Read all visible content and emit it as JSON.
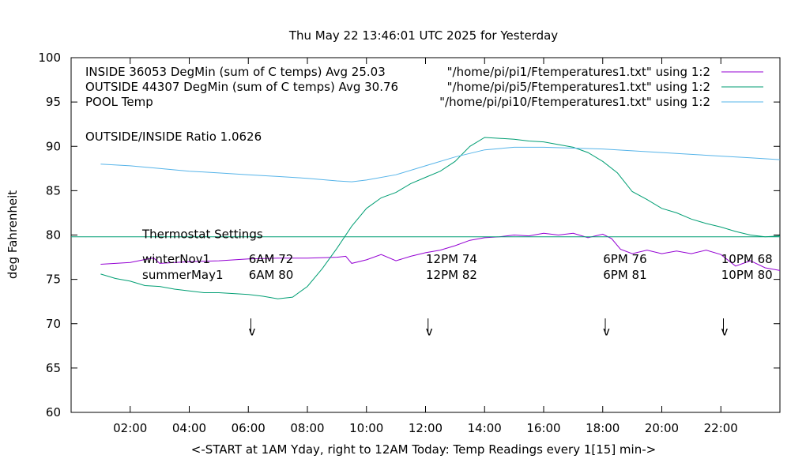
{
  "chart_data": {
    "type": "line",
    "title": "Thu May 22 13:46:01 UTC 2025 for Yesterday",
    "xlabel": "<-START at 1AM Yday, right to 12AM Today:  Temp Readings every 1[15] min->",
    "ylabel": "deg Fahrenheit",
    "xlim": [
      0,
      24
    ],
    "ylim": [
      60,
      100
    ],
    "x_ticks": [
      2,
      4,
      6,
      8,
      10,
      12,
      14,
      16,
      18,
      20,
      22
    ],
    "x_tick_labels": [
      "02:00",
      "04:00",
      "06:00",
      "08:00",
      "10:00",
      "12:00",
      "14:00",
      "16:00",
      "18:00",
      "20:00",
      "22:00"
    ],
    "y_ticks": [
      60,
      65,
      70,
      75,
      80,
      85,
      90,
      95,
      100
    ],
    "y_tick_labels": [
      "60",
      "65",
      "70",
      "75",
      "80",
      "85",
      "90",
      "95",
      "100"
    ],
    "grid": false,
    "legend_position": "top",
    "series": [
      {
        "name": "INSIDE 36053 DegMin (sum of C temps) Avg 25.03",
        "legend_key": "\"/home/pi/pi1/Ftemperatures1.txt\" using 1:2",
        "color": "#9400d3",
        "x": [
          1.0,
          2.0,
          2.6,
          2.8,
          3.0,
          4.0,
          5.0,
          6.0,
          7.0,
          8.0,
          9.0,
          9.3,
          9.5,
          10.0,
          10.5,
          11.0,
          11.5,
          12.0,
          12.5,
          13.0,
          13.5,
          14.0,
          14.5,
          15.0,
          15.5,
          16.0,
          16.5,
          17.0,
          17.5,
          18.0,
          18.3,
          18.6,
          19.0,
          19.5,
          20.0,
          20.5,
          21.0,
          21.5,
          22.0,
          22.5,
          23.0,
          23.5,
          24.0
        ],
        "y": [
          76.7,
          76.9,
          77.3,
          77.4,
          76.8,
          77.0,
          77.1,
          77.3,
          77.4,
          77.4,
          77.5,
          77.6,
          76.8,
          77.2,
          77.8,
          77.1,
          77.6,
          78.0,
          78.3,
          78.8,
          79.4,
          79.7,
          79.8,
          80.0,
          79.9,
          80.2,
          80.0,
          80.2,
          79.7,
          80.1,
          79.6,
          78.4,
          77.9,
          78.3,
          77.9,
          78.2,
          77.9,
          78.3,
          77.8,
          76.5,
          77.1,
          76.3,
          76.0
        ]
      },
      {
        "name": "OUTSIDE 44307 DegMin (sum of C temps) Avg 30.76",
        "legend_key": "\"/home/pi/pi5/Ftemperatures1.txt\" using 1:2",
        "color": "#009e73",
        "x": [
          1.0,
          1.5,
          2.0,
          2.5,
          3.0,
          3.5,
          4.0,
          4.5,
          5.0,
          5.5,
          6.0,
          6.5,
          7.0,
          7.5,
          8.0,
          8.5,
          9.0,
          9.5,
          10.0,
          10.5,
          11.0,
          11.5,
          12.0,
          12.5,
          13.0,
          13.5,
          14.0,
          14.5,
          15.0,
          15.5,
          16.0,
          16.5,
          17.0,
          17.5,
          18.0,
          18.5,
          19.0,
          19.5,
          20.0,
          20.5,
          21.0,
          21.5,
          22.0,
          22.5,
          23.0,
          23.5,
          24.0
        ],
        "y": [
          75.6,
          75.1,
          74.8,
          74.3,
          74.2,
          73.9,
          73.7,
          73.5,
          73.5,
          73.4,
          73.3,
          73.1,
          72.8,
          73.0,
          74.2,
          76.2,
          78.5,
          81.0,
          83.0,
          84.2,
          84.8,
          85.8,
          86.5,
          87.2,
          88.3,
          90.0,
          91.0,
          90.9,
          90.8,
          90.6,
          90.5,
          90.2,
          89.9,
          89.3,
          88.3,
          87.0,
          84.9,
          84.0,
          83.0,
          82.5,
          81.8,
          81.3,
          80.9,
          80.4,
          80.0,
          79.8,
          79.9
        ]
      },
      {
        "name": "POOL Temp",
        "legend_key": "\"/home/pi/pi10/Ftemperatures1.txt\" using 1:2",
        "color": "#56b4e9",
        "x": [
          1.0,
          2.0,
          3.0,
          4.0,
          5.0,
          6.0,
          7.0,
          8.0,
          9.0,
          9.5,
          10.0,
          11.0,
          12.0,
          13.0,
          14.0,
          15.0,
          16.0,
          17.0,
          18.0,
          19.0,
          20.0,
          21.0,
          22.0,
          23.0,
          24.0
        ],
        "y": [
          88.0,
          87.8,
          87.5,
          87.2,
          87.0,
          86.8,
          86.6,
          86.4,
          86.1,
          86.0,
          86.2,
          86.8,
          87.8,
          88.8,
          89.6,
          89.9,
          89.9,
          89.8,
          89.7,
          89.5,
          89.3,
          89.1,
          88.9,
          88.7,
          88.5
        ]
      },
      {
        "name": "Thermostat Settings",
        "color": "#009e73",
        "x": [
          0,
          24
        ],
        "y": [
          79.8,
          79.8
        ]
      }
    ],
    "annotations": {
      "ratio": "OUTSIDE/INSIDE Ratio 1.0626",
      "thermostat_title": "Thermostat Settings",
      "rows": [
        {
          "label": "winterNov1",
          "y": 77.3,
          "times": [
            "6AM 72",
            "12PM 74",
            "6PM 76",
            "10PM 68"
          ]
        },
        {
          "label": "summerMay1",
          "y": 75.5,
          "times": [
            "6AM 80",
            "12PM 82",
            "6PM 81",
            "10PM 80"
          ]
        }
      ],
      "time_x": [
        6.0,
        12.0,
        18.0,
        22.0
      ],
      "arrows": [
        {
          "x": 6.1,
          "text": "v"
        },
        {
          "x": 12.1,
          "text": "v"
        },
        {
          "x": 18.1,
          "text": "v"
        },
        {
          "x": 22.1,
          "text": "v"
        }
      ],
      "arrow_y_top": 70.6,
      "arrow_y_bottom": 69.1,
      "arrow_label_y": 68.7
    }
  }
}
